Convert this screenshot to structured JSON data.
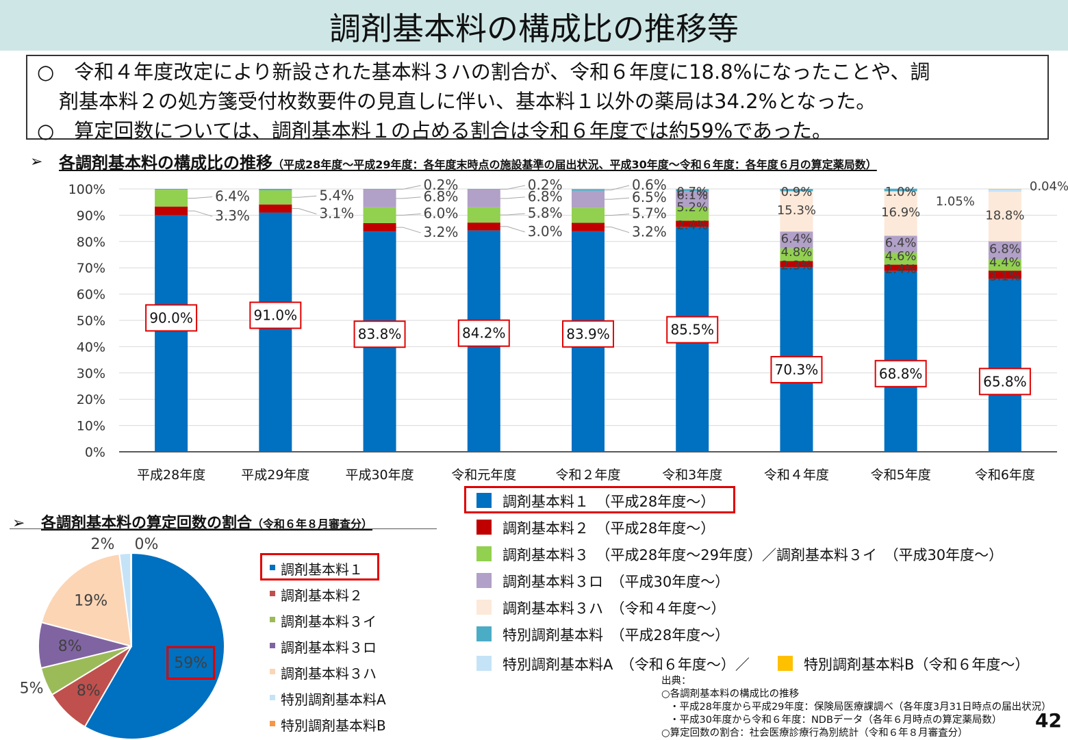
{
  "page": {
    "title": "調剤基本料の構成比の推移等",
    "summary_lines": [
      "○　令和４年度改定により新設された基本料３ハの割合が、令和６年度に18.8%になったことや、調",
      "剤基本料２の処方箋受付枚数要件の見直しに伴い、基本料１以外の薬局は34.2%となった。",
      "○　算定回数については、調剤基本料１の占める割合は令和６年度では約59%であった。"
    ],
    "arrow_glyph": "➢",
    "section1_title": "各調剤基本料の構成比の推移",
    "section1_note": "（平成28年度～平成29年度：各年度末時点の施設基準の届出状況、平成30年度～令和６年度：各年度６月の算定薬局数）",
    "section2_title": "各調剤基本料の算定回数の割合",
    "section2_note": "（令和６年８月審査分）",
    "page_number": "42"
  },
  "legend": [
    {
      "label": "調剤基本料１　（平成28年度～）",
      "color": "#0070c0",
      "highlight": true
    },
    {
      "label": "調剤基本料２　（平成28年度～）",
      "color": "#c00000"
    },
    {
      "label": "調剤基本料３　（平成28年度～29年度）／調剤基本料３イ　（平成30年度～）",
      "color": "#92d050"
    },
    {
      "label": "調剤基本料３ロ　（平成30年度～）",
      "color": "#b1a0c7"
    },
    {
      "label": "調剤基本料３ハ　（令和４年度～）",
      "color": "#fde9d9"
    },
    {
      "label": "特別調剤基本料　（平成28年度～）",
      "color": "#4bacc6"
    },
    {
      "label": "特別調剤基本料A　（令和６年度～）／",
      "color": "#c5e3f7",
      "label2": "特別調剤基本料B（令和６年度～）",
      "color2": "#ffc000"
    }
  ],
  "source": [
    "出典：",
    "○各調剤基本料の構成比の推移",
    "・平成28年度から平成29年度：保険局医療課調べ（各年度3月31日時点の届出状況）",
    "・平成30年度から令和６年度：NDBデータ（各年６月時点の算定薬局数）",
    "○算定回数の割合：社会医療診療行為別統計（令和６年８月審査分）"
  ],
  "chart_data": [
    {
      "type": "bar",
      "stacked": true,
      "categories": [
        "平成28年度",
        "平成29年度",
        "平成30年度",
        "令和元年度",
        "令和２年度",
        "令和3年度",
        "令和４年度",
        "令和5年度",
        "令和6年度"
      ],
      "ylim": [
        0,
        100
      ],
      "ytick_labels": [
        "0%",
        "10%",
        "20%",
        "30%",
        "40%",
        "50%",
        "60%",
        "70%",
        "80%",
        "90%",
        "100%"
      ],
      "series": [
        {
          "name": "調剤基本料１",
          "color": "#0070c0",
          "values": [
            90.0,
            91.0,
            83.8,
            84.2,
            83.9,
            85.5,
            70.3,
            68.8,
            65.8
          ],
          "labels": [
            "90.0%",
            "91.0%",
            "83.8%",
            "84.2%",
            "83.9%",
            "85.5%",
            "70.3%",
            "68.8%",
            "65.8%"
          ]
        },
        {
          "name": "調剤基本料２",
          "color": "#c00000",
          "values": [
            3.3,
            3.1,
            3.2,
            3.0,
            3.2,
            2.4,
            2.3,
            2.4,
            3.1
          ],
          "labels": [
            "3.3%",
            "3.1%",
            "3.2%",
            "3.0%",
            "3.2%",
            "2.4%",
            "2.3%",
            "2.4%",
            "3.1%"
          ]
        },
        {
          "name": "調剤基本料３イ",
          "color": "#92d050",
          "values": [
            6.4,
            5.4,
            6.0,
            5.8,
            5.7,
            5.2,
            4.8,
            4.6,
            4.4
          ],
          "labels": [
            "6.4%",
            "5.4%",
            "6.0%",
            "5.8%",
            "5.7%",
            "5.2%",
            "4.8%",
            "4.6%",
            "4.4%"
          ]
        },
        {
          "name": "調剤基本料３ロ",
          "color": "#b1a0c7",
          "values": [
            0,
            0,
            6.8,
            6.8,
            6.5,
            6.1,
            6.4,
            6.4,
            6.8
          ],
          "labels": [
            "",
            "",
            "6.8%",
            "6.8%",
            "6.5%",
            "6.1%",
            "6.4%",
            "6.4%",
            "6.8%"
          ]
        },
        {
          "name": "調剤基本料３ハ",
          "color": "#fde9d9",
          "values": [
            0,
            0,
            0,
            0,
            0,
            0,
            15.3,
            16.9,
            18.8
          ],
          "labels": [
            "",
            "",
            "",
            "",
            "",
            "",
            "15.3%",
            "16.9%",
            "18.8%"
          ]
        },
        {
          "name": "特別調剤基本料",
          "color": "#4bacc6",
          "values": [
            0.3,
            0.5,
            0.2,
            0.2,
            0.6,
            0.7,
            0.9,
            1.0,
            0
          ],
          "labels": [
            "",
            "",
            "0.2%",
            "0.2%",
            "0.6%",
            "0.7%",
            "0.9%",
            "1.0%",
            ""
          ]
        },
        {
          "name": "特別調剤基本料A",
          "color": "#c5e3f7",
          "values": [
            0,
            0,
            0,
            0,
            0,
            0,
            0,
            0,
            1.05
          ],
          "labels": [
            "",
            "",
            "",
            "",
            "",
            "",
            "",
            "",
            "1.05%"
          ]
        },
        {
          "name": "特別調剤基本料B",
          "color": "#ffc000",
          "values": [
            0,
            0,
            0,
            0,
            0,
            0,
            0,
            0,
            0.04
          ],
          "labels": [
            "",
            "",
            "",
            "",
            "",
            "",
            "",
            "",
            "0.04%"
          ]
        }
      ]
    },
    {
      "type": "pie",
      "slices": [
        {
          "name": "調剤基本料１",
          "value": 59,
          "label": "59%",
          "color": "#0070c0",
          "highlight": true
        },
        {
          "name": "調剤基本料２",
          "value": 8,
          "label": "8%",
          "color": "#c0504d"
        },
        {
          "name": "調剤基本料３イ",
          "value": 5,
          "label": "5%",
          "color": "#9bbb59"
        },
        {
          "name": "調剤基本料３ロ",
          "value": 8,
          "label": "8%",
          "color": "#8064a2"
        },
        {
          "name": "調剤基本料３ハ",
          "value": 19,
          "label": "19%",
          "color": "#fcd5b5"
        },
        {
          "name": "特別調剤基本料A",
          "value": 2,
          "label": "2%",
          "color": "#c5e3f7"
        },
        {
          "name": "特別調剤基本料B",
          "value": 0.1,
          "label": "0%",
          "color": "#f79646"
        }
      ],
      "legend": [
        "調剤基本料１",
        "調剤基本料２",
        "調剤基本料３イ",
        "調剤基本料３ロ",
        "調剤基本料３ハ",
        "特別調剤基本料A",
        "特別調剤基本料B"
      ]
    }
  ]
}
